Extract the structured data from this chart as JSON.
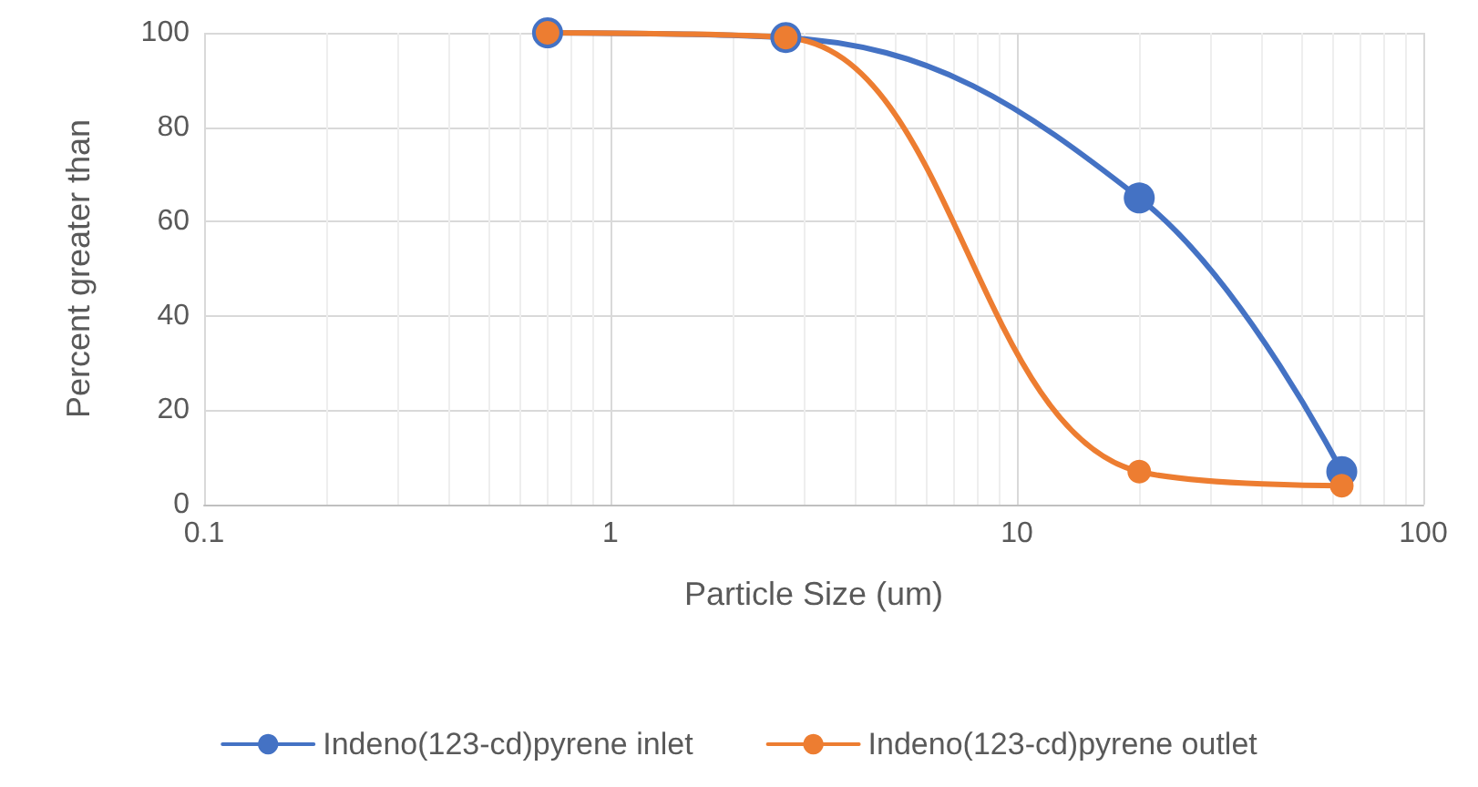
{
  "chart_data": {
    "type": "line",
    "xlabel": "Particle Size (um)",
    "ylabel": "Percent greater than",
    "log": "x",
    "xlim": [
      0.1,
      100
    ],
    "xticks": [
      0.1,
      1,
      10,
      100
    ],
    "ylim": [
      0,
      100
    ],
    "yticks": [
      0,
      20,
      40,
      60,
      80,
      100
    ],
    "grid": true,
    "legend": "bottom",
    "marker": "circle",
    "line_style": "solid",
    "series": [
      {
        "name": "Indeno(123-cd)pyrene inlet",
        "color": "#4472c4",
        "x": [
          0.7,
          2.7,
          20,
          63
        ],
        "values": [
          100,
          99,
          65,
          7
        ]
      },
      {
        "name": "Indeno(123-cd)pyrene outlet",
        "color": "#ed7d31",
        "x": [
          0.7,
          2.7,
          20,
          63
        ],
        "values": [
          100,
          99,
          7,
          4
        ]
      }
    ]
  }
}
